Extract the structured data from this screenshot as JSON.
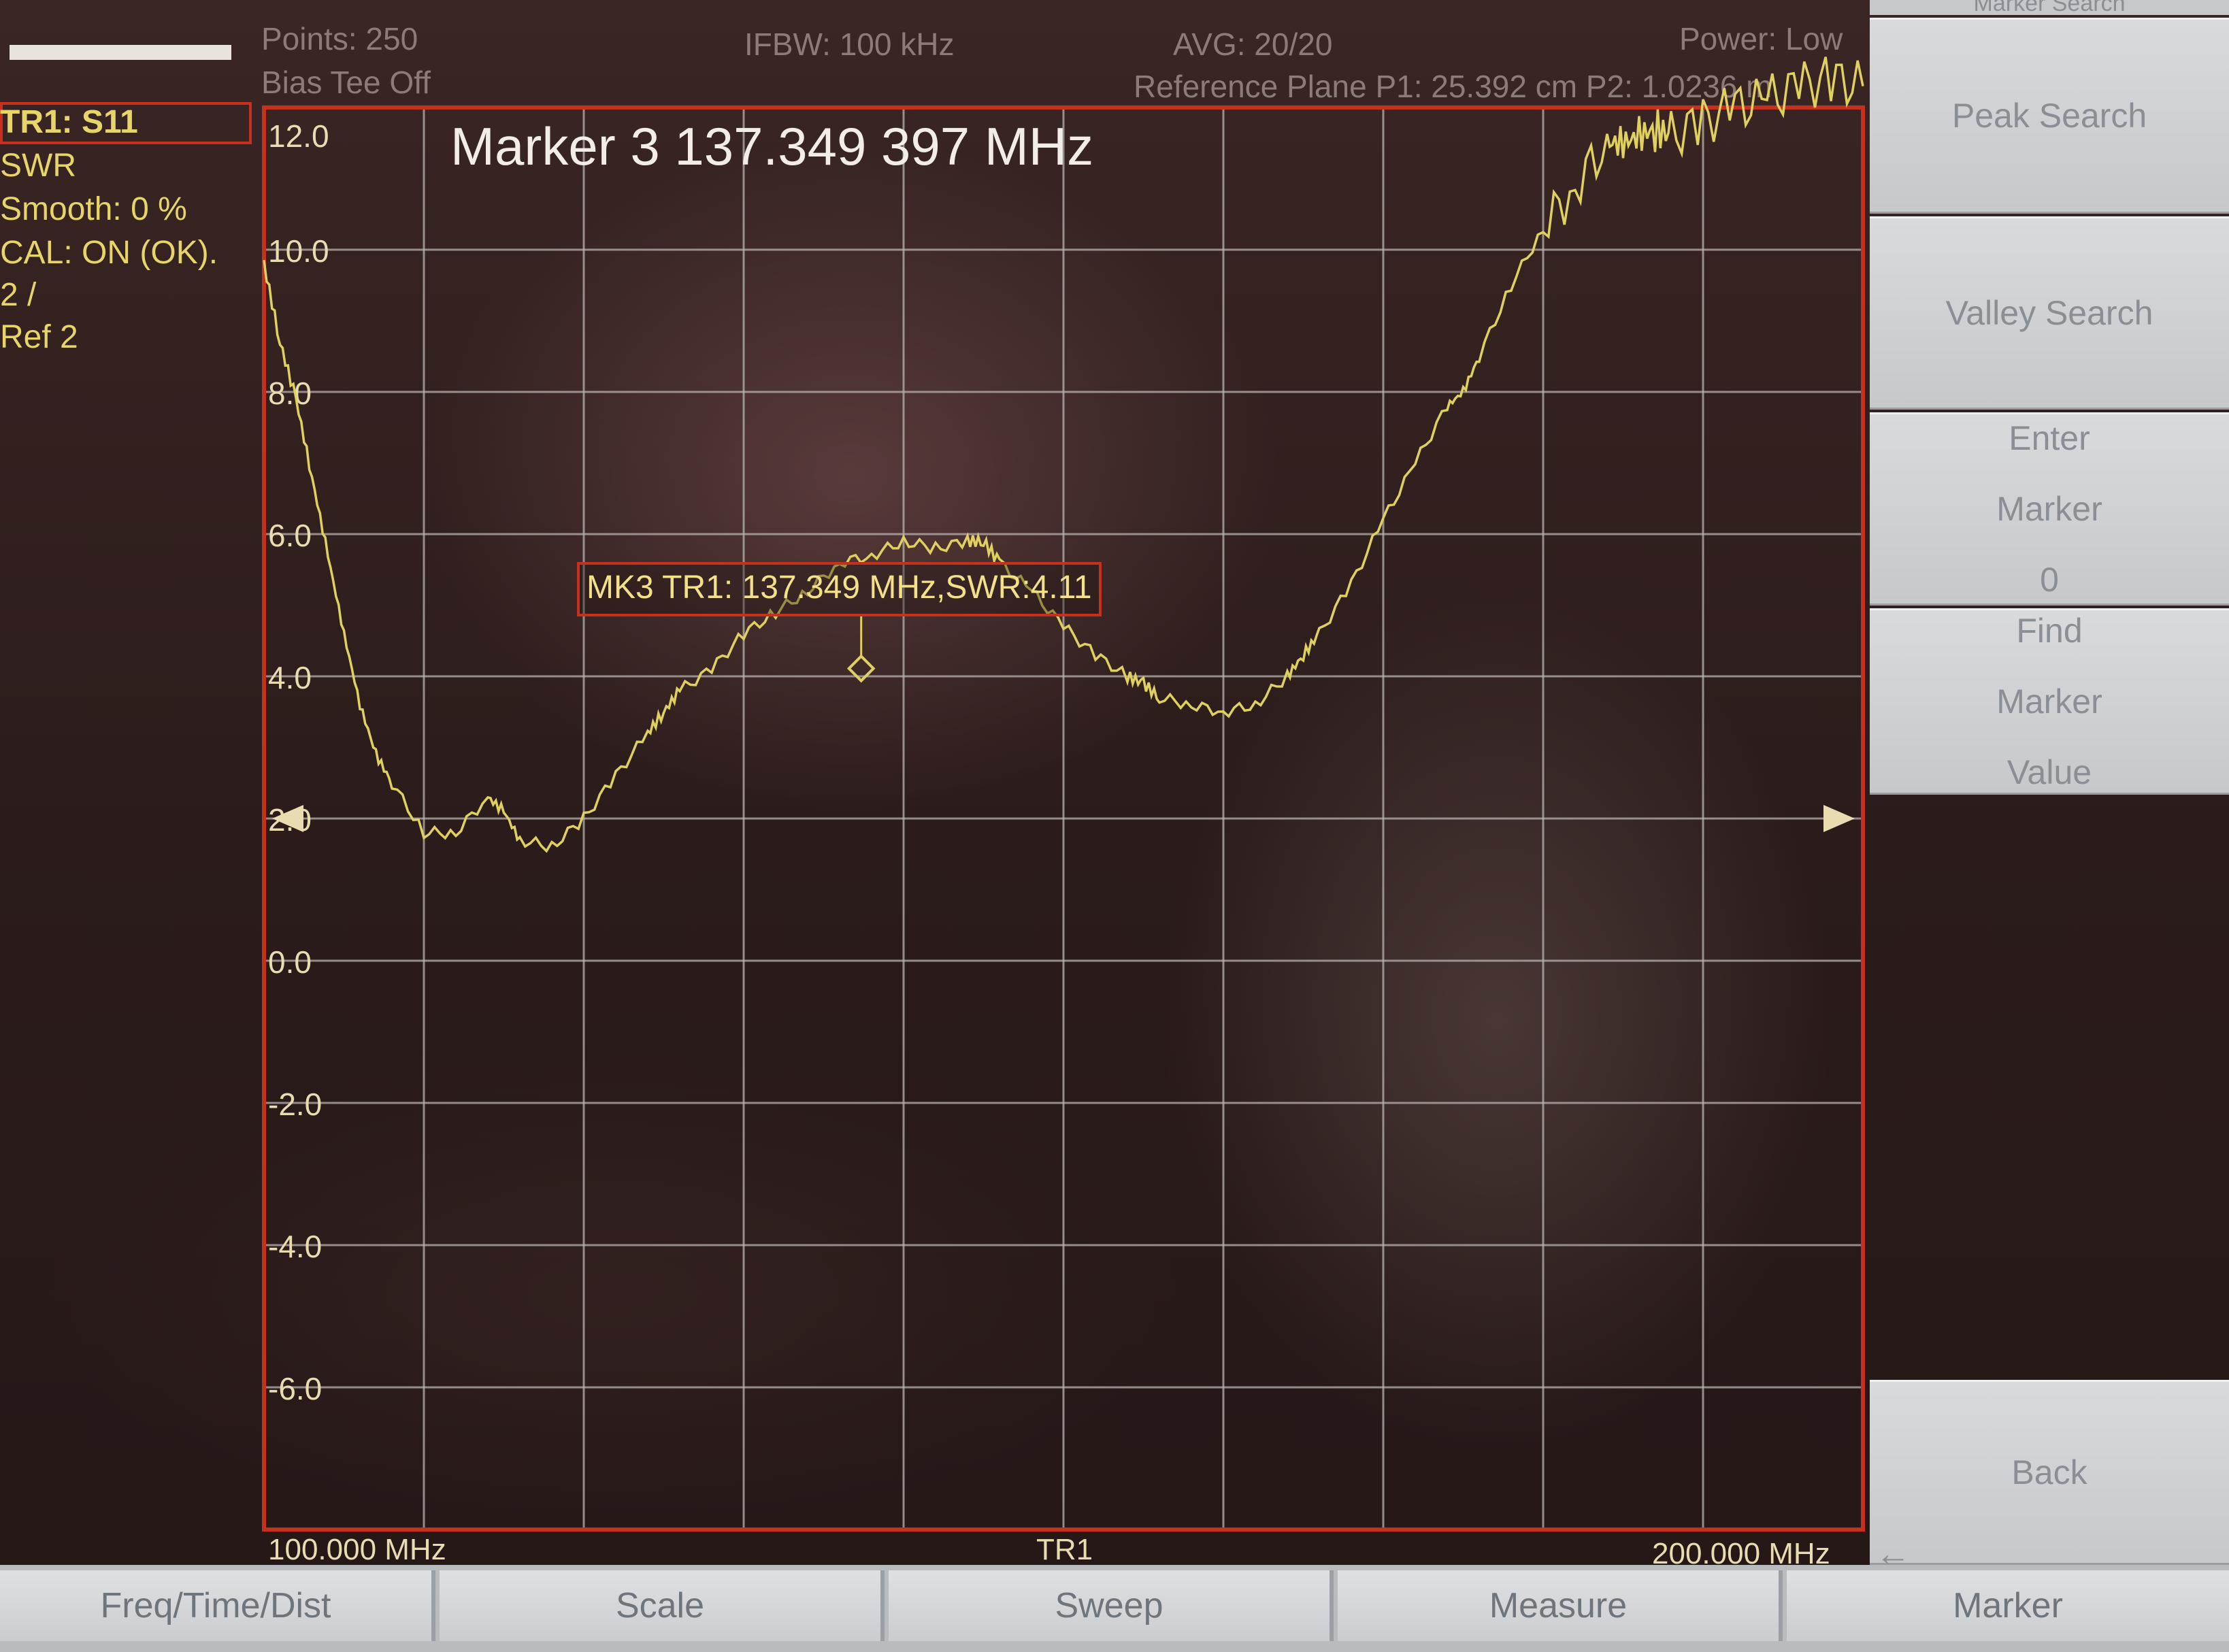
{
  "header": {
    "points": "Points: 250",
    "bias_tee": "Bias Tee Off",
    "ifbw": "IFBW: 100 kHz",
    "avg": "AVG: 20/20",
    "power": "Power: Low",
    "reference_plane": "Reference Plane P1: 25.392 cm P2: 1.0236 m"
  },
  "trace_info": {
    "trace": "TR1: S11",
    "format": "SWR",
    "smooth": "Smooth: 0 %",
    "cal": "CAL: ON (OK).",
    "scale": "2 /",
    "ref": "Ref 2"
  },
  "marker": {
    "title": "Marker 3 137.349 397 MHz",
    "readout": "MK3 TR1:  137.349 MHz,SWR:4.11",
    "freq_mhz": 137.349,
    "swr": 4.11
  },
  "chart_data": {
    "type": "line",
    "title": "",
    "xlabel": "",
    "ylabel": "",
    "x_start_label": "100.000 MHz",
    "x_center_label": "TR1",
    "x_stop_label": "200.000 MHz",
    "xlim": [
      100,
      200
    ],
    "ylim": [
      -8,
      12
    ],
    "ytick_labels": [
      "12.0",
      "10.0",
      "8.0",
      "6.0",
      "4.0",
      "2.0",
      "0.0",
      "-2.0",
      "-4.0",
      "-6.0"
    ],
    "ytick_values": [
      12,
      10,
      8,
      6,
      4,
      2,
      0,
      -2,
      -4,
      -6
    ],
    "reference_value": 2,
    "grid": true,
    "trace_color": "#e0d060",
    "series": [
      {
        "x": [
          100,
          101,
          102,
          103,
          104,
          105,
          106,
          107,
          108,
          110,
          112,
          114,
          115,
          116,
          118,
          120,
          122,
          124,
          125,
          126,
          128,
          130,
          132,
          134,
          136,
          137.35,
          138,
          140,
          142,
          144,
          145,
          146,
          148,
          150,
          152,
          154,
          155,
          156,
          158,
          160,
          162,
          164,
          165,
          166,
          168,
          170,
          172,
          174,
          175,
          176,
          178,
          180,
          182,
          184,
          185,
          186,
          187,
          188,
          190,
          192,
          194,
          196,
          198,
          200
        ],
        "y": [
          9.8,
          8.7,
          7.9,
          6.8,
          5.7,
          4.6,
          3.6,
          2.9,
          2.5,
          1.8,
          1.8,
          2.3,
          2.1,
          1.7,
          1.6,
          2.0,
          2.6,
          3.2,
          3.5,
          3.8,
          4.1,
          4.6,
          4.9,
          5.2,
          5.6,
          4.11,
          5.7,
          5.9,
          5.8,
          5.9,
          5.9,
          5.6,
          5.2,
          4.7,
          4.3,
          4.0,
          3.9,
          3.7,
          3.6,
          3.5,
          3.6,
          4.0,
          4.3,
          4.6,
          5.3,
          6.2,
          7.0,
          7.8,
          8.0,
          8.5,
          9.5,
          10.3,
          10.9,
          11.5,
          11.5,
          11.6,
          11.7,
          11.6,
          11.8,
          12.0,
          12.1,
          12.3,
          12.4,
          12.3
        ]
      }
    ]
  },
  "softkeys": {
    "top_strip": "Marker Search",
    "peak_search": "Peak Search",
    "valley_search": "Valley Search",
    "enter_marker": [
      "Enter",
      "Marker",
      "0"
    ],
    "find_marker_value": [
      "Find",
      "Marker",
      "Value"
    ],
    "back": "Back",
    "back_arrow": "←"
  },
  "tabs": [
    "Freq/Time/Dist",
    "Scale",
    "Sweep",
    "Measure",
    "Marker"
  ],
  "colors": {
    "graticule": "#b8b2ae",
    "frame": "#c8301e",
    "trace": "#e0d060",
    "text_yellow": "#e8d56a"
  }
}
